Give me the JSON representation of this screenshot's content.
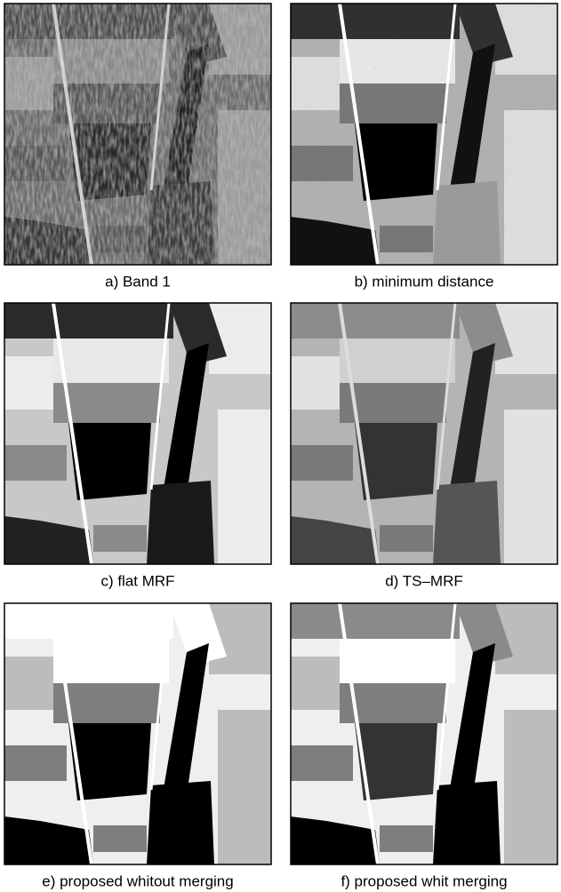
{
  "panels": [
    {
      "caption": "a) Band 1"
    },
    {
      "caption": "b) minimum distance"
    },
    {
      "caption": "c) flat MRF"
    },
    {
      "caption": "d) TS–MRF"
    },
    {
      "caption": "e) proposed whitout merging"
    },
    {
      "caption": "f) proposed whit merging"
    }
  ]
}
